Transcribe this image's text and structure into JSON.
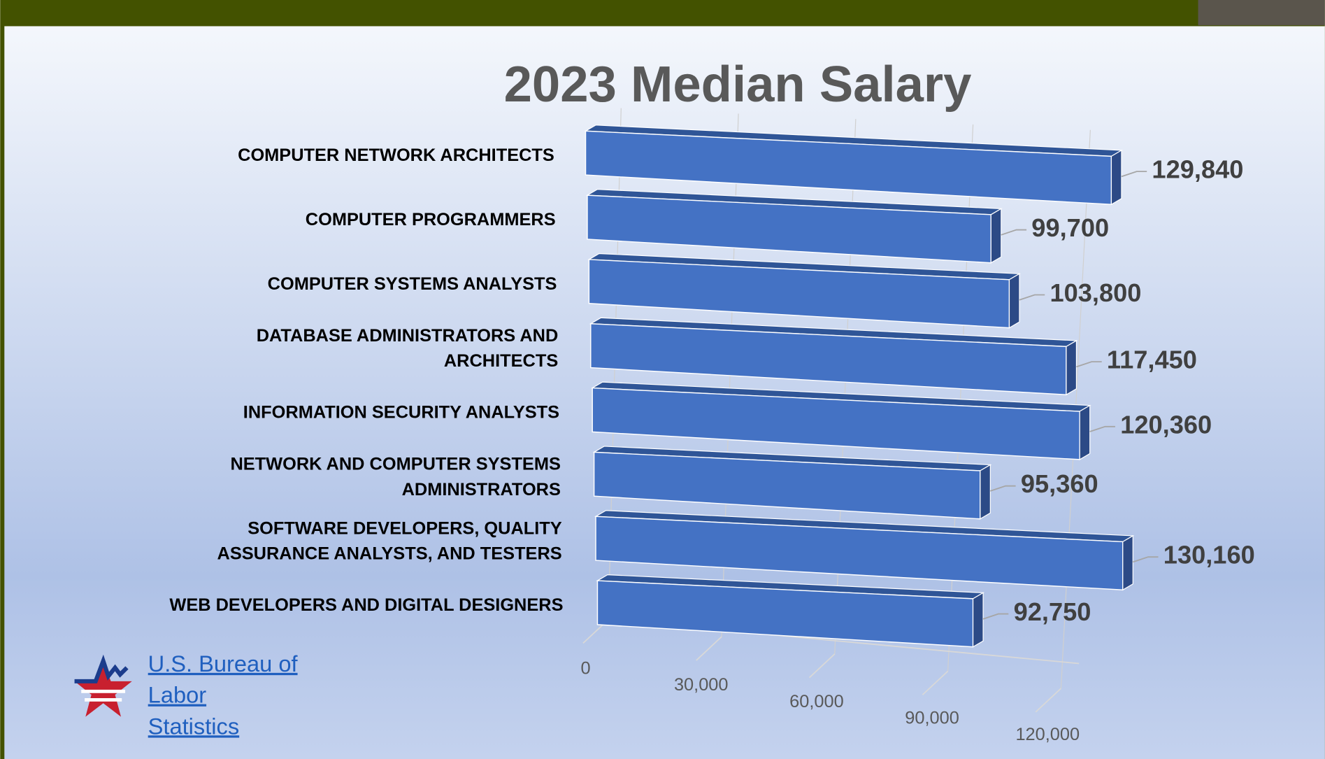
{
  "chart_data": {
    "type": "bar3d",
    "title": "2023 Median Salary",
    "categories": [
      "COMPUTER NETWORK ARCHITECTS",
      "COMPUTER PROGRAMMERS",
      "COMPUTER SYSTEMS ANALYSTS",
      "DATABASE ADMINISTRATORS AND ARCHITECTS",
      "INFORMATION SECURITY ANALYSTS",
      "NETWORK AND COMPUTER SYSTEMS ADMINISTRATORS",
      "SOFTWARE DEVELOPERS, QUALITY ASSURANCE ANALYSTS, AND TESTERS",
      "WEB DEVELOPERS AND DIGITAL DESIGNERS"
    ],
    "values": [
      129840,
      99700,
      103800,
      117450,
      120360,
      95360,
      130160,
      92750
    ],
    "value_labels": [
      "129,840",
      "99,700",
      "103,800",
      "117,450",
      "120,360",
      "95,360",
      "130,160",
      "92,750"
    ],
    "color": "#4472c4",
    "xlim": [
      0,
      140000
    ],
    "xticks": [
      0,
      {
        "value": 30000,
        "label": "30,000"
      },
      {
        "value": 60000,
        "label": "60,000"
      },
      {
        "value": 90000,
        "label": "90,000"
      },
      {
        "value": 120000,
        "label": "120,000"
      }
    ],
    "grid": true,
    "source": "U.S. Bureau of Labor Statistics"
  }
}
